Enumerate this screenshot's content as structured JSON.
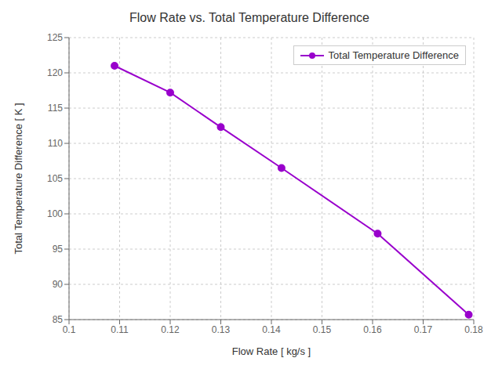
{
  "chart_data": {
    "type": "line",
    "title": "Flow Rate vs. Total Temperature Difference",
    "xlabel": "Flow Rate [ kg/s ]",
    "ylabel": "Total Temperature Difference [ K ]",
    "x": [
      0.109,
      0.12,
      0.13,
      0.142,
      0.161,
      0.179
    ],
    "series": [
      {
        "name": "Total Temperature Difference",
        "color": "#9900CC",
        "marker": "o",
        "values": [
          121.0,
          117.2,
          112.3,
          106.5,
          97.2,
          85.7
        ]
      }
    ],
    "xlim": [
      0.1,
      0.18
    ],
    "ylim": [
      85,
      125
    ],
    "xticks": [
      0.1,
      0.11,
      0.12,
      0.13,
      0.14,
      0.15,
      0.16,
      0.17,
      0.18
    ],
    "yticks": [
      85,
      90,
      95,
      100,
      105,
      110,
      115,
      120,
      125
    ],
    "grid": true,
    "legend": "upper right"
  }
}
